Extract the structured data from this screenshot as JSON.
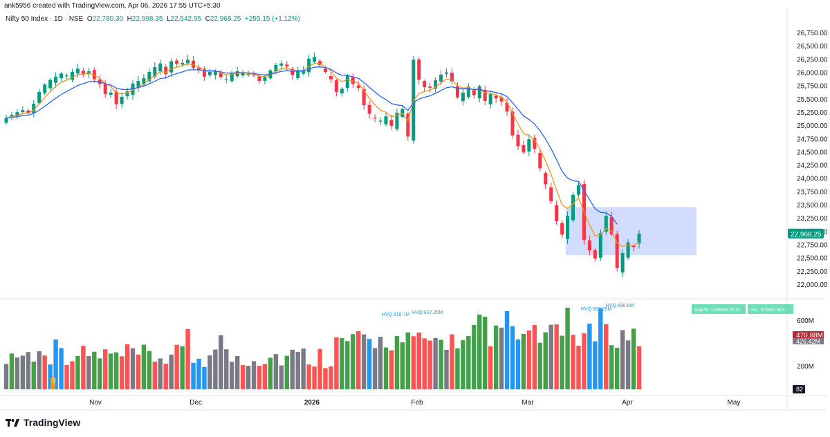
{
  "header": {
    "created_by": "ank5956 created with TradingView.com, Apr 06, 2026 17:55 UTC+5:30"
  },
  "legend": {
    "symbol": "Nifty 50 Index · 1D · NSE",
    "o_label": "O",
    "o_value": "22,780.30",
    "h_label": "H",
    "h_value": "22,998.35",
    "l_label": "L",
    "l_value": "22,542.95",
    "c_label": "C",
    "c_value": "22,968.25",
    "change": "+255.15 (+1.12%)"
  },
  "colors": {
    "up": "#089981",
    "down": "#f23645",
    "ema_fast": "#f7931a",
    "ema_slow": "#2962ff",
    "vol_grey": "#787b86",
    "vol_green": "#43a047",
    "vol_red": "#ff5252",
    "vol_blue": "#2196f3",
    "zone": "#c9d6ff"
  },
  "price_axis": {
    "labels": [
      "26,750.00",
      "26,500.00",
      "26,250.00",
      "26,000.00",
      "25,750.00",
      "25,500.00",
      "25,250.00",
      "25,000.00",
      "24,750.00",
      "24,500.00",
      "24,250.00",
      "24,000.00",
      "23,750.00",
      "23,500.00",
      "23,250.00",
      "23,000.00",
      "22,750.00",
      "22,500.00",
      "22,250.00",
      "22,000.00"
    ],
    "last_price_badge": "22,968.25"
  },
  "volume_axis": {
    "labels": [
      "600M",
      "200M"
    ],
    "badge_vol": "470.88M",
    "badge_ma": "426.42M",
    "badge_count": "82",
    "avg_vol_label": "AvgVol: 1159059.02 Cr",
    "ind_label": "Ind.: 374697.88 L"
  },
  "hvq_labels": [
    "HVQ 618.7M",
    "HVQ 637.26M",
    "HVQ 662.29M",
    "HVQ 698.6M"
  ],
  "q_marker": "Q",
  "time_axis": [
    "Nov",
    "Dec",
    "2026",
    "Feb",
    "Mar",
    "Apr",
    "May"
  ],
  "brand": "TradingView",
  "chart_data": {
    "type": "candlestick",
    "title": "Nifty 50 Index · 1D · NSE",
    "ylim": [
      22000,
      26750
    ],
    "x_label_order": [
      "Nov",
      "Dec",
      "2026",
      "Feb",
      "Mar",
      "Apr",
      "May"
    ],
    "ohlc_closes_approx": [
      25150,
      25210,
      25260,
      25300,
      25250,
      25420,
      25640,
      25780,
      25870,
      25930,
      25990,
      25950,
      26020,
      26080,
      25980,
      26030,
      25880,
      25790,
      25600,
      25630,
      25410,
      25550,
      25650,
      25800,
      25850,
      25900,
      26020,
      26110,
      26180,
      25980,
      26220,
      26170,
      26190,
      26250,
      26090,
      26050,
      25930,
      26020,
      26040,
      25920,
      25880,
      26000,
      26030,
      26010,
      25980,
      25950,
      25850,
      25920,
      26050,
      26150,
      26180,
      26120,
      25960,
      26050,
      26050,
      26270,
      26300,
      26150,
      26020,
      25880,
      25640,
      25700,
      25950,
      25790,
      25720,
      25390,
      25230,
      25150,
      25100,
      25180,
      25000,
      25250,
      25320,
      24800,
      26250,
      25870,
      25730,
      25720,
      25860,
      25970,
      26010,
      25840,
      25540,
      25630,
      25740,
      25580,
      25750,
      25470,
      25600,
      25520,
      25460,
      25270,
      24820,
      24620,
      24500,
      24750,
      24570,
      24200,
      23900,
      23580,
      23200,
      22950,
      23300,
      23700,
      23880,
      22850,
      22650,
      22500,
      22980,
      23300,
      22950,
      22320,
      22600,
      22800,
      22713,
      22968
    ],
    "volume_highlights": [
      "HVQ 618.7M",
      "HVQ 637.26M",
      "HVQ 662.29M",
      "HVQ 698.6M"
    ],
    "moving_averages": [
      "EMA fast (orange)",
      "EMA slow (blue)"
    ],
    "zone": {
      "price_top": 23470,
      "price_bottom": 22560
    },
    "last_volume": "470.88M"
  }
}
